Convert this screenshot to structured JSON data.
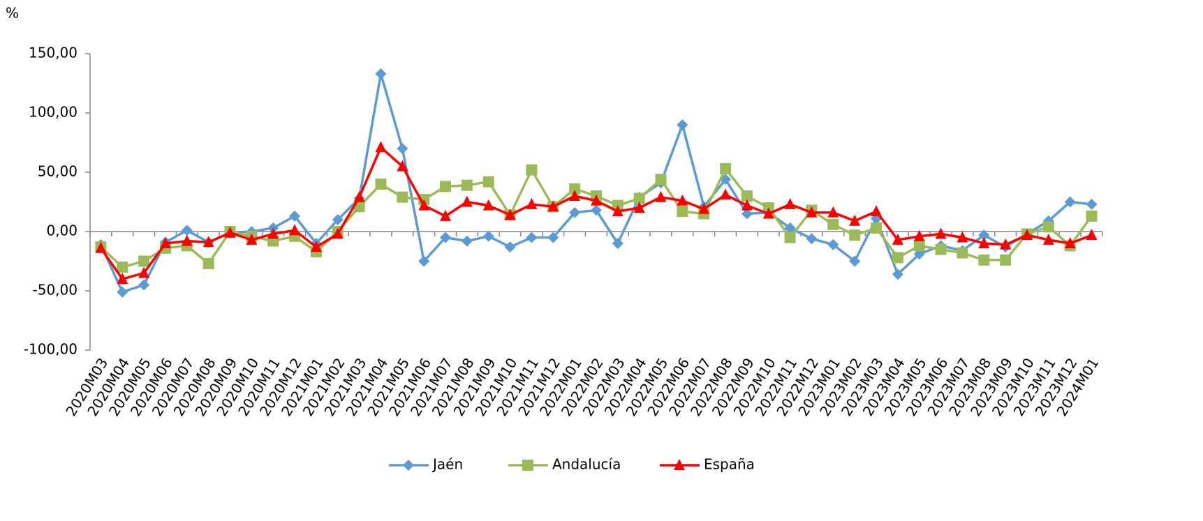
{
  "chart_data": {
    "type": "line",
    "y_label": "%",
    "categories": [
      "2020M03",
      "2020M04",
      "2020M05",
      "2020M06",
      "2020M07",
      "2020M08",
      "2020M09",
      "2020M10",
      "2020M11",
      "2020M12",
      "2021M01",
      "2021M02",
      "2021M03",
      "2021M04",
      "2021M05",
      "2021M06",
      "2021M07",
      "2021M08",
      "2021M09",
      "2021M10",
      "2021M11",
      "2021M12",
      "2022M01",
      "2022M02",
      "2022M03",
      "2022M04",
      "2022M05",
      "2022M06",
      "2022M07",
      "2022M08",
      "2022M09",
      "2022M10",
      "2022M11",
      "2022M12",
      "2023M01",
      "2023M02",
      "2023M03",
      "2023M04",
      "2023M05",
      "2023M06",
      "2023M07",
      "2023M08",
      "2023M09",
      "2023M10",
      "2023M11",
      "2023M12",
      "2024M01"
    ],
    "series": [
      {
        "name": "Jaén",
        "color": "#5b9bd5",
        "marker": "diamond",
        "values": [
          -11,
          -51,
          -45,
          -9,
          1,
          -9,
          -1,
          0,
          3,
          13,
          -10,
          10,
          28,
          133,
          70,
          -25,
          -5,
          -8,
          -4,
          -13,
          -5,
          -5,
          16,
          18,
          -10,
          29,
          41,
          90,
          21,
          44,
          15,
          16,
          3,
          -6,
          -11,
          -25,
          11,
          -36,
          -19,
          -12,
          -16,
          -3,
          -13,
          -2,
          9,
          25,
          23
        ]
      },
      {
        "name": "Andalucía",
        "color": "#9bbb59",
        "marker": "square",
        "values": [
          -13,
          -30,
          -25,
          -14,
          -12,
          -27,
          0,
          -4,
          -8,
          -4,
          -17,
          0,
          21,
          40,
          29,
          27,
          38,
          39,
          42,
          14,
          52,
          21,
          36,
          30,
          22,
          28,
          44,
          17,
          15,
          53,
          30,
          20,
          -5,
          18,
          6,
          -3,
          3,
          -22,
          -12,
          -15,
          -18,
          -24,
          -24,
          -2,
          4,
          -12,
          13
        ]
      },
      {
        "name": "España",
        "color": "#ff0000",
        "marker": "triangle",
        "values": [
          -14,
          -40,
          -35,
          -10,
          -8,
          -9,
          -1,
          -7,
          -2,
          1,
          -13,
          -2,
          29,
          71,
          55,
          22,
          13,
          25,
          22,
          14,
          23,
          21,
          30,
          26,
          17,
          20,
          29,
          26,
          19,
          31,
          22,
          15,
          23,
          16,
          16,
          9,
          17,
          -7,
          -4,
          -2,
          -5,
          -10,
          -11,
          -3,
          -7,
          -10,
          -3
        ]
      }
    ],
    "ylim": [
      -100,
      150
    ],
    "yticks": [
      {
        "value": -100,
        "label": "-100,00"
      },
      {
        "value": -50,
        "label": "-50,00"
      },
      {
        "value": 0,
        "label": "0,00"
      },
      {
        "value": 50,
        "label": "50,00"
      },
      {
        "value": 100,
        "label": "100,00"
      },
      {
        "value": 150,
        "label": "150,00"
      }
    ],
    "legend": "bottom"
  }
}
